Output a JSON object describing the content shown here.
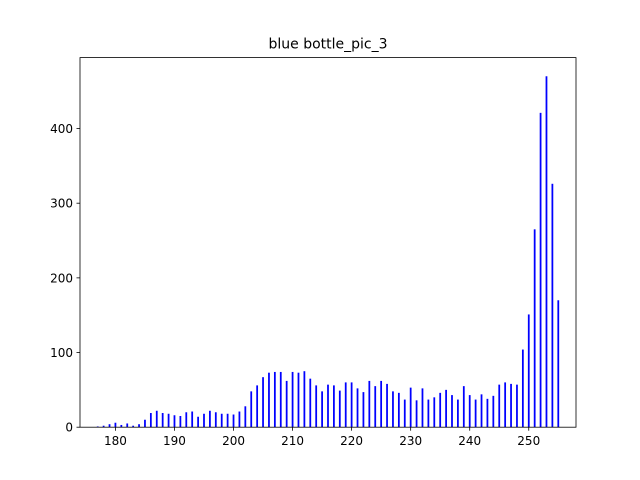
{
  "chart_data": {
    "type": "bar",
    "title": "blue bottle_pic_3",
    "xlabel": "",
    "ylabel": "",
    "xlim": [
      174,
      258
    ],
    "ylim": [
      0,
      495
    ],
    "xticks": [
      180,
      190,
      200,
      210,
      220,
      230,
      240,
      250
    ],
    "yticks": [
      0,
      100,
      200,
      300,
      400
    ],
    "grid": false,
    "bar_color": "#0000ff",
    "x": [
      177,
      178,
      179,
      180,
      181,
      182,
      183,
      184,
      185,
      186,
      187,
      188,
      189,
      190,
      191,
      192,
      193,
      194,
      195,
      196,
      197,
      198,
      199,
      200,
      201,
      202,
      203,
      204,
      205,
      206,
      207,
      208,
      209,
      210,
      211,
      212,
      213,
      214,
      215,
      216,
      217,
      218,
      219,
      220,
      221,
      222,
      223,
      224,
      225,
      226,
      227,
      228,
      229,
      230,
      231,
      232,
      233,
      234,
      235,
      236,
      237,
      238,
      239,
      240,
      241,
      242,
      243,
      244,
      245,
      246,
      247,
      248,
      249,
      250,
      251,
      252,
      253,
      254,
      255
    ],
    "values": [
      1,
      2,
      4,
      6,
      3,
      5,
      2,
      4,
      10,
      19,
      22,
      19,
      18,
      16,
      15,
      20,
      21,
      14,
      18,
      22,
      20,
      18,
      18,
      17,
      21,
      28,
      48,
      56,
      67,
      73,
      74,
      74,
      62,
      74,
      73,
      75,
      65,
      56,
      48,
      57,
      56,
      49,
      60,
      60,
      52,
      47,
      62,
      55,
      62,
      58,
      48,
      46,
      37,
      53,
      36,
      52,
      37,
      40,
      46,
      50,
      43,
      37,
      55,
      43,
      37,
      44,
      38,
      42,
      57,
      60,
      58,
      57,
      104,
      151,
      265,
      421,
      470,
      326,
      170
    ]
  }
}
